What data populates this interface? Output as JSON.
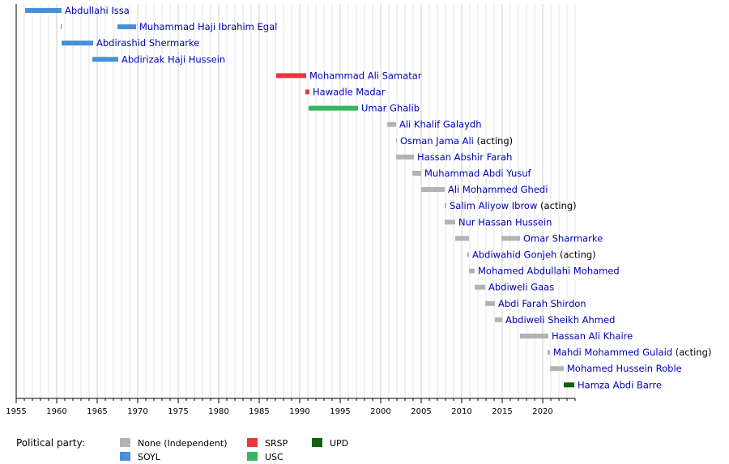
{
  "chart_data": {
    "type": "timeline",
    "xlim": [
      1955,
      2024
    ],
    "x_ticks": [
      1955,
      1960,
      1965,
      1970,
      1975,
      1980,
      1985,
      1990,
      1995,
      2000,
      2005,
      2010,
      2015,
      2020
    ],
    "grid": true,
    "legend_placement": "bottom-left",
    "legend_title": "Political party:",
    "parties": [
      {
        "key": "none",
        "label": "None (Independent)",
        "color": "#b3b3b3"
      },
      {
        "key": "soyl",
        "label": "SOYL",
        "color": "#4a90d9"
      },
      {
        "key": "srsp",
        "label": "SRSP",
        "color": "#e8383d"
      },
      {
        "key": "usc",
        "label": "USC",
        "color": "#3cb55f"
      },
      {
        "key": "upd",
        "label": "UPD",
        "color": "#11620f"
      }
    ],
    "rows": [
      {
        "name": "Abdullahi Issa",
        "note": "",
        "party": "soyl",
        "terms": [
          [
            1956.1,
            1960.6
          ]
        ]
      },
      {
        "name": "Muhammad Haji Ibrahim Egal",
        "note": "",
        "party": "soyl",
        "terms": [
          [
            1960.5,
            1960.6
          ],
          [
            1967.5,
            1969.8
          ]
        ]
      },
      {
        "name": "Abdirashid Shermarke",
        "note": "",
        "party": "soyl",
        "terms": [
          [
            1960.6,
            1964.5
          ]
        ]
      },
      {
        "name": "Abdirizak Haji Hussein",
        "note": "",
        "party": "soyl",
        "terms": [
          [
            1964.4,
            1967.6
          ]
        ]
      },
      {
        "name": "Mohammad Ali Samatar",
        "note": "",
        "party": "srsp",
        "terms": [
          [
            1987.1,
            1990.8
          ]
        ]
      },
      {
        "name": "Hawadle Madar",
        "note": "",
        "party": "srsp",
        "terms": [
          [
            1990.7,
            1991.2
          ]
        ]
      },
      {
        "name": "Umar Ghalib",
        "note": "",
        "party": "usc",
        "terms": [
          [
            1991.1,
            1997.2
          ]
        ]
      },
      {
        "name": "Ali Khalif Galaydh",
        "note": "",
        "party": "none",
        "terms": [
          [
            2000.8,
            2001.9
          ]
        ]
      },
      {
        "name": "Osman Jama Ali",
        "note": "(acting)",
        "party": "none",
        "terms": [
          [
            2001.9,
            2002.0
          ]
        ]
      },
      {
        "name": "Hassan Abshir Farah",
        "note": "",
        "party": "none",
        "terms": [
          [
            2001.9,
            2004.1
          ]
        ]
      },
      {
        "name": "Muhammad Abdi Yusuf",
        "note": "",
        "party": "none",
        "terms": [
          [
            2003.9,
            2005.0
          ]
        ]
      },
      {
        "name": "Ali Mohammed Ghedi",
        "note": "",
        "party": "none",
        "terms": [
          [
            2005.0,
            2007.9
          ]
        ]
      },
      {
        "name": "Salim Aliyow Ibrow",
        "note": "(acting)",
        "party": "none",
        "terms": [
          [
            2007.9,
            2008.1
          ]
        ]
      },
      {
        "name": "Nur Hassan Hussein",
        "note": "",
        "party": "none",
        "terms": [
          [
            2007.9,
            2009.2
          ]
        ]
      },
      {
        "name": "Omar Sharmarke",
        "note": "",
        "party": "none",
        "terms": [
          [
            2009.2,
            2010.9
          ],
          [
            2014.9,
            2017.2
          ]
        ]
      },
      {
        "name": "Abdiwahid Gonjeh",
        "note": "(acting)",
        "party": "none",
        "terms": [
          [
            2010.7,
            2010.9
          ]
        ]
      },
      {
        "name": "Mohamed Abdullahi Mohamed",
        "note": "",
        "party": "none",
        "terms": [
          [
            2010.9,
            2011.6
          ]
        ]
      },
      {
        "name": "Abdiweli Gaas",
        "note": "",
        "party": "none",
        "terms": [
          [
            2011.6,
            2012.9
          ]
        ]
      },
      {
        "name": "Abdi Farah Shirdon",
        "note": "",
        "party": "none",
        "terms": [
          [
            2012.9,
            2014.1
          ]
        ]
      },
      {
        "name": "Abdiweli Sheikh Ahmed",
        "note": "",
        "party": "none",
        "terms": [
          [
            2014.1,
            2015.0
          ]
        ]
      },
      {
        "name": "Hassan Ali Khaire",
        "note": "",
        "party": "none",
        "terms": [
          [
            2017.2,
            2020.7
          ]
        ]
      },
      {
        "name": "Mahdi Mohammed Gulaid",
        "note": "(acting)",
        "party": "none",
        "terms": [
          [
            2020.6,
            2020.9
          ]
        ]
      },
      {
        "name": "Mohamed Hussein Roble",
        "note": "",
        "party": "none",
        "terms": [
          [
            2020.9,
            2022.6
          ]
        ]
      },
      {
        "name": "Hamza Abdi Barre",
        "note": "",
        "party": "upd",
        "terms": [
          [
            2022.6,
            2023.9
          ]
        ]
      }
    ]
  }
}
